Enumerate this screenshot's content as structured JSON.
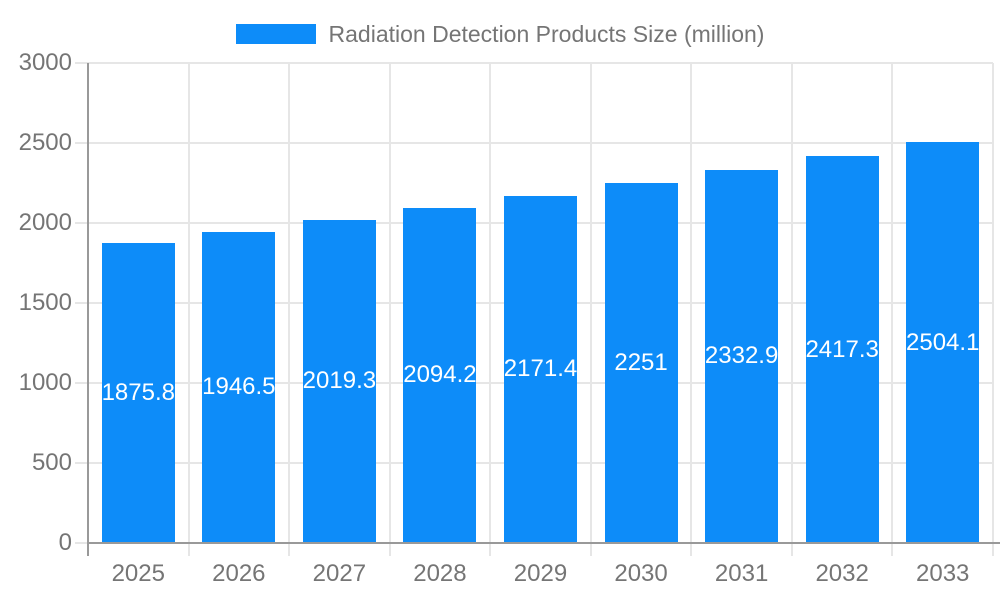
{
  "chart_data": {
    "type": "bar",
    "title": "Radiation Detection Products Size (million)",
    "categories": [
      "2025",
      "2026",
      "2027",
      "2028",
      "2029",
      "2030",
      "2031",
      "2032",
      "2033"
    ],
    "values": [
      1875.8,
      1946.5,
      2019.3,
      2094.2,
      2171.4,
      2251,
      2332.9,
      2417.3,
      2504.1
    ],
    "value_labels": [
      "1875.8",
      "1946.5",
      "2019.3",
      "2094.2",
      "2171.4",
      "2251",
      "2332.9",
      "2417.3",
      "2504.1"
    ],
    "xlabel": "",
    "ylabel": "",
    "ylim": [
      0,
      3000
    ],
    "yticks": [
      0,
      500,
      1000,
      1500,
      2000,
      2500,
      3000
    ],
    "ytick_labels": [
      "0",
      "500",
      "1000",
      "1500",
      "2000",
      "2500",
      "3000"
    ],
    "grid": true,
    "legend_position": "top",
    "colors": {
      "bar": "#0d8cf9",
      "bar_label_text": "#ffffff",
      "axis_text": "#757575",
      "grid_line": "#e6e6e6",
      "axis_line": "#999999",
      "background": "#ffffff"
    }
  }
}
